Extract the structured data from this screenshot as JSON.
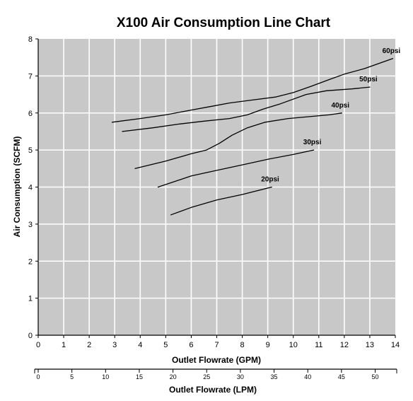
{
  "chart_data": {
    "type": "line",
    "title": "X100 Air Consumption Line Chart",
    "xlabel": "Outlet Flowrate (GPM)",
    "ylabel": "Air Consumption (SCFM)",
    "xlim": [
      0,
      14
    ],
    "ylim": [
      0,
      8
    ],
    "xticks": [
      "0",
      "1",
      "2",
      "3",
      "4",
      "5",
      "6",
      "7",
      "8",
      "9",
      "10",
      "11",
      "12",
      "13",
      "14"
    ],
    "yticks": [
      "0",
      "1",
      "2",
      "3",
      "4",
      "5",
      "6",
      "7",
      "8"
    ],
    "grid": true,
    "colors": {
      "plot_bg": "#c8c8c8",
      "grid": "#ffffff",
      "line": "#000000",
      "frame": "#000000"
    },
    "series": [
      {
        "name": "20psi",
        "x": [
          5.2,
          6.0,
          7.0,
          8.0,
          9.15
        ],
        "y": [
          3.25,
          3.45,
          3.65,
          3.8,
          4.0
        ]
      },
      {
        "name": "30psi",
        "x": [
          4.7,
          6.0,
          7.0,
          8.0,
          9.0,
          10.0,
          10.8
        ],
        "y": [
          4.0,
          4.3,
          4.45,
          4.6,
          4.75,
          4.88,
          5.0
        ]
      },
      {
        "name": "40psi",
        "x": [
          3.8,
          5.0,
          6.0,
          6.6,
          7.1,
          7.6,
          8.2,
          8.9,
          9.8,
          10.6,
          11.4,
          11.9
        ],
        "y": [
          4.5,
          4.7,
          4.9,
          5.0,
          5.18,
          5.4,
          5.6,
          5.75,
          5.85,
          5.9,
          5.95,
          6.0
        ]
      },
      {
        "name": "50psi",
        "x": [
          3.3,
          4.5,
          5.5,
          6.5,
          7.5,
          8.2,
          8.8,
          9.5,
          10.5,
          11.3,
          12.3,
          13.0
        ],
        "y": [
          5.5,
          5.6,
          5.7,
          5.78,
          5.85,
          5.95,
          6.1,
          6.25,
          6.5,
          6.6,
          6.65,
          6.7
        ]
      },
      {
        "name": "60psi",
        "x": [
          2.9,
          4.0,
          5.0,
          6.0,
          6.8,
          7.5,
          8.4,
          9.3,
          10.0,
          10.7,
          11.4,
          12.0,
          12.8,
          13.9
        ],
        "y": [
          5.75,
          5.85,
          5.95,
          6.08,
          6.18,
          6.27,
          6.35,
          6.43,
          6.55,
          6.72,
          6.9,
          7.05,
          7.2,
          7.47
        ]
      }
    ],
    "secondary_axis": {
      "label": "Outlet Flowrate (LPM)",
      "ticks": [
        0,
        5,
        10,
        15,
        20,
        25,
        30,
        35,
        40,
        45,
        50
      ],
      "tick_labels": [
        "0",
        "5",
        "10",
        "15",
        "20",
        "25",
        "30",
        "35",
        "40",
        "45",
        "50"
      ],
      "lpm_per_gpm": 3.785
    }
  }
}
